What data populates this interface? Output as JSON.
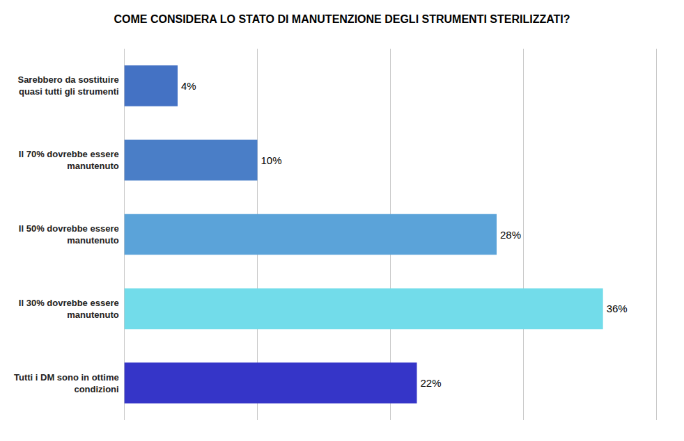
{
  "chart_data": {
    "type": "bar",
    "orientation": "horizontal",
    "title": "COME CONSIDERA LO STATO DI MANUTENZIONE DEGLI STRUMENTI STERILIZZATI?",
    "categories": [
      "Sarebbero da sostituire\nquasi tutti gli strumenti",
      "Il 70% dovrebbe essere\nmanutenuto",
      "Il 50% dovrebbe essere\nmanutenuto",
      "Il 30% dovrebbe essere\nmanutenuto",
      "Tutti i DM sono in ottime\ncondizioni"
    ],
    "values": [
      4,
      10,
      28,
      36,
      22
    ],
    "value_labels": [
      "4%",
      "10%",
      "28%",
      "36%",
      "22%"
    ],
    "data_labels": true,
    "colors": [
      "#4472C4",
      "#4A7EC7",
      "#5BA3D9",
      "#72DCEA",
      "#3535C8"
    ],
    "xlim": [
      0,
      40
    ],
    "xticks": [
      10,
      20,
      30,
      40
    ],
    "grid": true,
    "tick_labels": "y"
  }
}
